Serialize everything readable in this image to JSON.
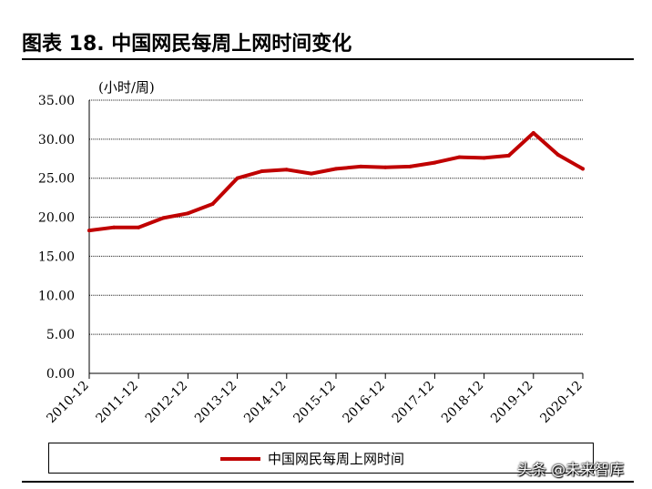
{
  "title": "图表 18. 中国网民每周上网时间变化",
  "watermark": "头条 @未来智库",
  "chart_data": {
    "type": "line",
    "unit_label": "(小时/周)",
    "ylim": [
      0,
      35
    ],
    "yticks": [
      "0.00",
      "5.00",
      "10.00",
      "15.00",
      "20.00",
      "25.00",
      "30.00",
      "35.00"
    ],
    "grid": true,
    "legend_position": "bottom",
    "x_tick_labels": [
      "2010-12",
      "2011-12",
      "2012-12",
      "2013-12",
      "2014-12",
      "2015-12",
      "2016-12",
      "2017-12",
      "2018-12",
      "2019-12",
      "2020-12"
    ],
    "x": [
      "2010-12",
      "2011-06",
      "2011-12",
      "2012-06",
      "2012-12",
      "2013-06",
      "2013-12",
      "2014-06",
      "2014-12",
      "2015-06",
      "2015-12",
      "2016-06",
      "2016-12",
      "2017-06",
      "2017-12",
      "2018-06",
      "2018-12",
      "2019-06",
      "2019-12",
      "2020-06",
      "2020-12"
    ],
    "series": [
      {
        "name": "中国网民每周上网时间",
        "color": "#c00000",
        "values": [
          18.3,
          18.7,
          18.7,
          19.9,
          20.5,
          21.7,
          25.0,
          25.9,
          26.1,
          25.6,
          26.2,
          26.5,
          26.4,
          26.5,
          27.0,
          27.7,
          27.6,
          27.9,
          30.8,
          28.0,
          26.2
        ]
      }
    ]
  }
}
